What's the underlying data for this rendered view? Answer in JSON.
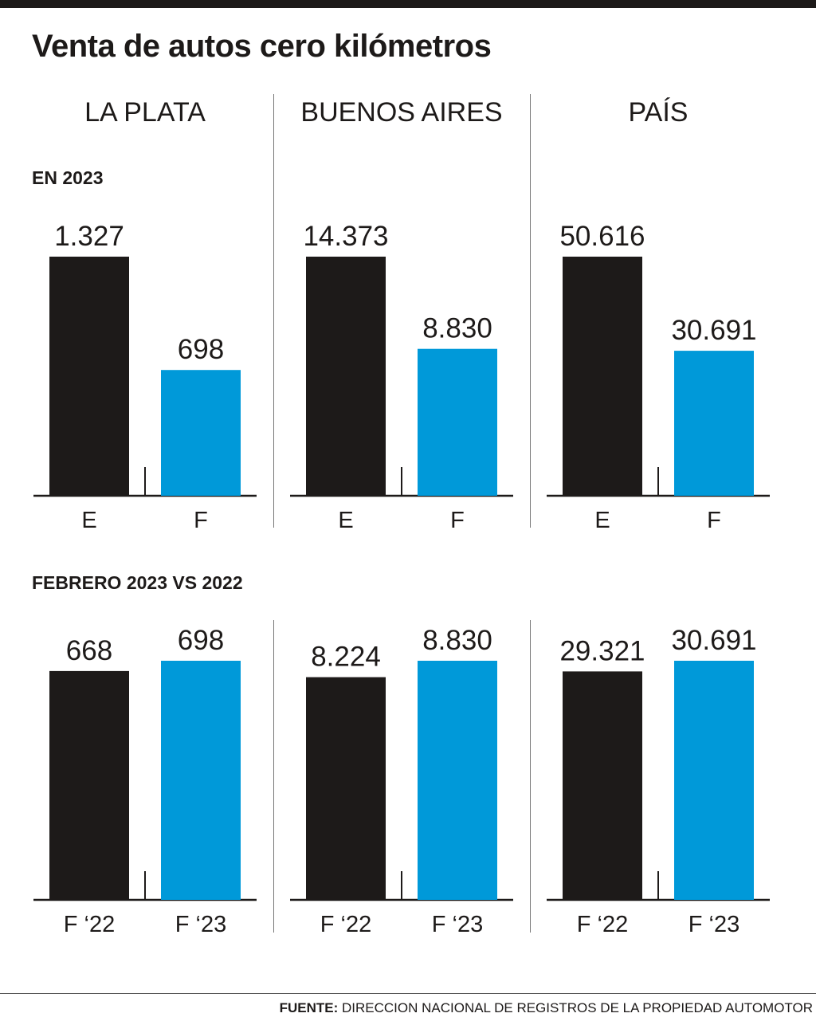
{
  "title": "Venta de autos cero kilómetros",
  "columns": [
    "LA PLATA",
    "BUENOS AIRES",
    "PAÍS"
  ],
  "sections": [
    "EN 2023",
    "FEBRERO 2023 VS 2022"
  ],
  "footer": {
    "label": "FUENTE:",
    "text": "DIRECCION NACIONAL DE REGISTROS DE LA PROPIEDAD AUTOMOTOR"
  },
  "colors": {
    "dark": "#1d1a19",
    "blue": "#0099d9"
  },
  "chart_data": [
    {
      "type": "bar",
      "title": "LA PLATA",
      "section": "EN 2023",
      "categories": [
        "E",
        "F"
      ],
      "values": [
        1327,
        698
      ],
      "labels": [
        "1.327",
        "698"
      ]
    },
    {
      "type": "bar",
      "title": "BUENOS AIRES",
      "section": "EN 2023",
      "categories": [
        "E",
        "F"
      ],
      "values": [
        14373,
        8830
      ],
      "labels": [
        "14.373",
        "8.830"
      ]
    },
    {
      "type": "bar",
      "title": "PAÍS",
      "section": "EN 2023",
      "categories": [
        "E",
        "F"
      ],
      "values": [
        50616,
        30691
      ],
      "labels": [
        "50.616",
        "30.691"
      ]
    },
    {
      "type": "bar",
      "title": "LA PLATA",
      "section": "FEBRERO 2023 VS 2022",
      "categories": [
        "F ‘22",
        "F ‘23"
      ],
      "values": [
        668,
        698
      ],
      "labels": [
        "668",
        "698"
      ]
    },
    {
      "type": "bar",
      "title": "BUENOS AIRES",
      "section": "FEBRERO 2023 VS 2022",
      "categories": [
        "F ‘22",
        "F ‘23"
      ],
      "values": [
        8224,
        8830
      ],
      "labels": [
        "8.224",
        "8.830"
      ]
    },
    {
      "type": "bar",
      "title": "PAÍS",
      "section": "FEBRERO 2023 VS 2022",
      "categories": [
        "F ‘22",
        "F ‘23"
      ],
      "values": [
        29321,
        30691
      ],
      "labels": [
        "29.321",
        "30.691"
      ]
    }
  ]
}
